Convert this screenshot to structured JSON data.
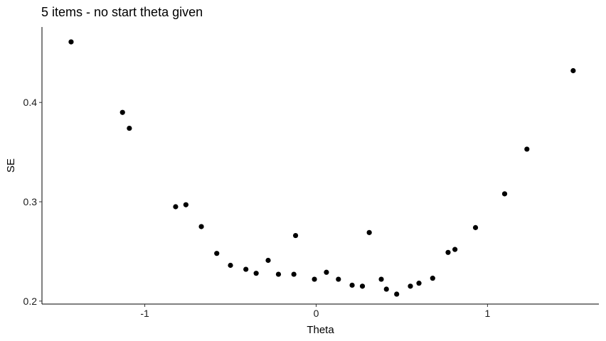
{
  "chart_data": {
    "type": "scatter",
    "title": "5 items - no start theta given",
    "xlabel": "Theta",
    "ylabel": "SE",
    "xlim": [
      -1.6,
      1.65
    ],
    "ylim": [
      0.197,
      0.476
    ],
    "xticks": [
      -1,
      0,
      1
    ],
    "xtick_labels": [
      "-1",
      "0",
      "1"
    ],
    "yticks": [
      0.2,
      0.3,
      0.4
    ],
    "ytick_labels": [
      "0.2",
      "0.3",
      "0.4"
    ],
    "grid": false,
    "point_color": "#000000",
    "points": [
      {
        "x": -1.43,
        "y": 0.461
      },
      {
        "x": -1.13,
        "y": 0.39
      },
      {
        "x": -1.09,
        "y": 0.374
      },
      {
        "x": -0.82,
        "y": 0.295
      },
      {
        "x": -0.76,
        "y": 0.297
      },
      {
        "x": -0.67,
        "y": 0.275
      },
      {
        "x": -0.58,
        "y": 0.248
      },
      {
        "x": -0.5,
        "y": 0.236
      },
      {
        "x": -0.41,
        "y": 0.232
      },
      {
        "x": -0.35,
        "y": 0.228
      },
      {
        "x": -0.28,
        "y": 0.241
      },
      {
        "x": -0.22,
        "y": 0.227
      },
      {
        "x": -0.13,
        "y": 0.227
      },
      {
        "x": -0.12,
        "y": 0.266
      },
      {
        "x": -0.01,
        "y": 0.222
      },
      {
        "x": 0.06,
        "y": 0.229
      },
      {
        "x": 0.13,
        "y": 0.222
      },
      {
        "x": 0.21,
        "y": 0.216
      },
      {
        "x": 0.27,
        "y": 0.215
      },
      {
        "x": 0.31,
        "y": 0.269
      },
      {
        "x": 0.38,
        "y": 0.222
      },
      {
        "x": 0.41,
        "y": 0.212
      },
      {
        "x": 0.47,
        "y": 0.207
      },
      {
        "x": 0.55,
        "y": 0.215
      },
      {
        "x": 0.6,
        "y": 0.218
      },
      {
        "x": 0.68,
        "y": 0.223
      },
      {
        "x": 0.77,
        "y": 0.249
      },
      {
        "x": 0.81,
        "y": 0.252
      },
      {
        "x": 0.93,
        "y": 0.274
      },
      {
        "x": 1.1,
        "y": 0.308
      },
      {
        "x": 1.23,
        "y": 0.353
      },
      {
        "x": 1.5,
        "y": 0.432
      }
    ]
  }
}
